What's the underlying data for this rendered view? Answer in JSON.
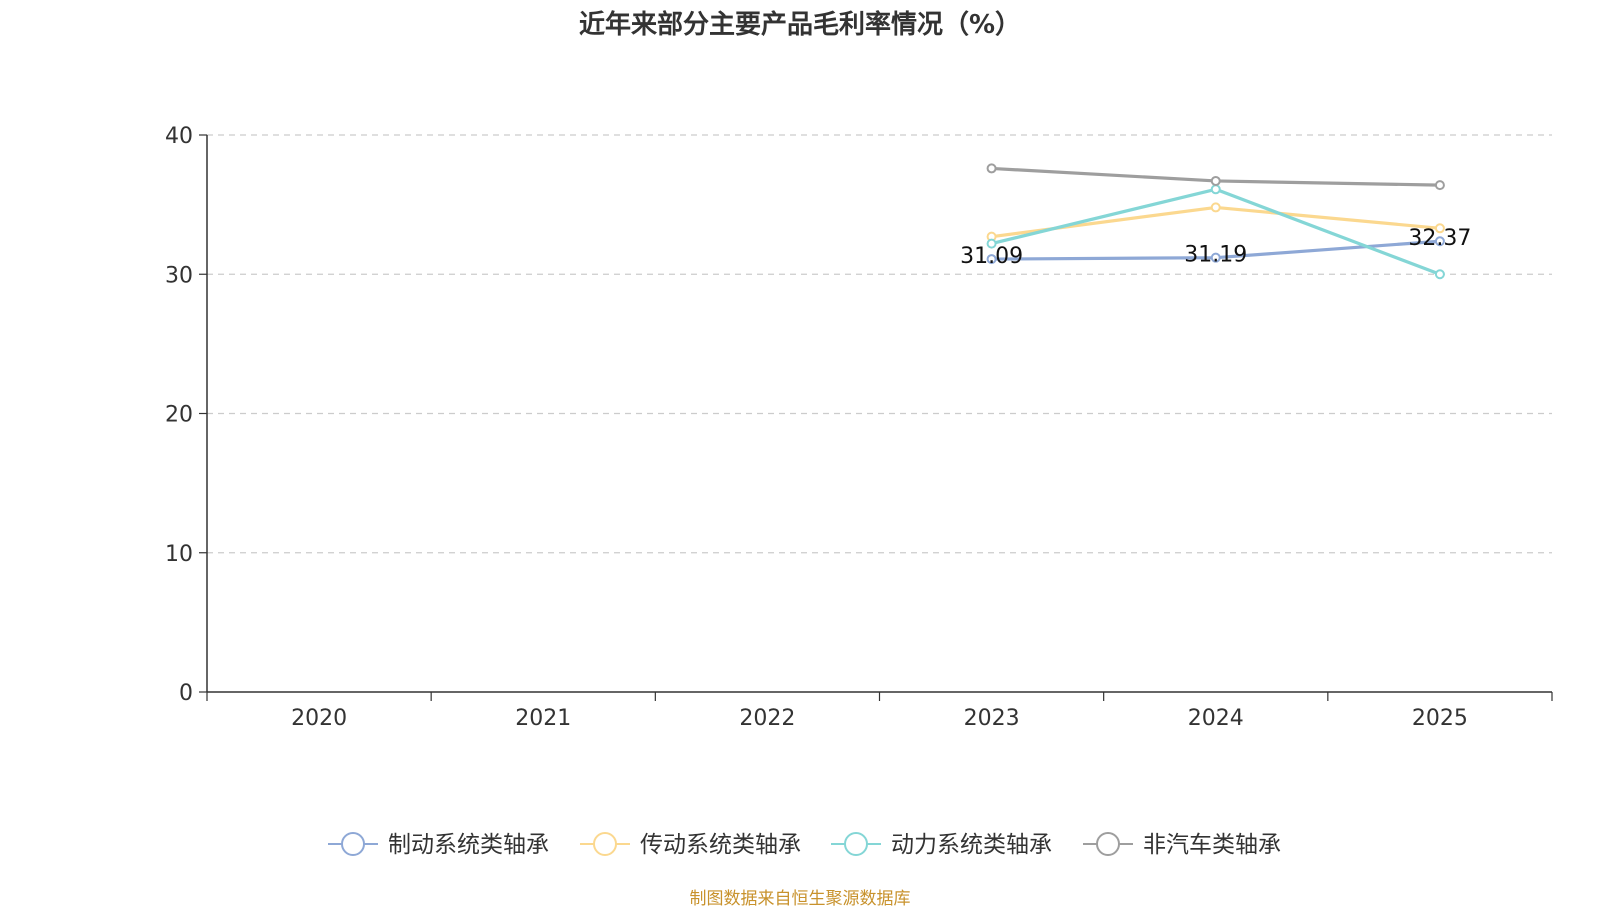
{
  "chart_data": {
    "type": "line",
    "title": "近年来部分主要产品毛利率情况（%）",
    "categories": [
      "2020",
      "2021",
      "2022",
      "2023",
      "2024",
      "2025"
    ],
    "ylim": [
      0,
      40
    ],
    "yticks": [
      0,
      10,
      20,
      30,
      40
    ],
    "grid": true,
    "legend_position": "bottom-center",
    "series": [
      {
        "name": "制动系统类轴承",
        "color": "#8ea8d6",
        "values": [
          null,
          null,
          null,
          31.09,
          31.19,
          32.37
        ],
        "labels": [
          "",
          "",
          "",
          "31.09",
          "31.19",
          "32.37"
        ]
      },
      {
        "name": "传动系统类轴承",
        "color": "#fbd88f",
        "values": [
          null,
          null,
          null,
          32.7,
          34.8,
          33.3
        ],
        "labels": []
      },
      {
        "name": "动力系统类轴承",
        "color": "#84d6d6",
        "values": [
          null,
          null,
          null,
          32.2,
          36.1,
          30.0
        ],
        "labels": []
      },
      {
        "name": "非汽车类轴承",
        "color": "#9e9e9e",
        "values": [
          null,
          null,
          null,
          37.6,
          36.7,
          36.4
        ],
        "labels": []
      }
    ]
  },
  "footer": {
    "source": "制图数据来自恒生聚源数据库"
  }
}
